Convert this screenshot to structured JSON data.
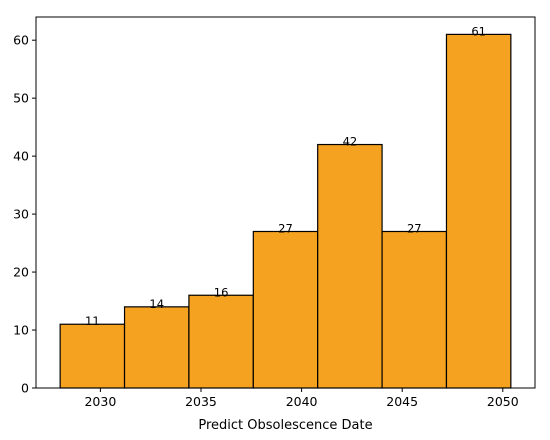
{
  "chart_data": {
    "type": "bar",
    "bins": [
      {
        "start": 2028.0,
        "end": 2031.2,
        "count": 11
      },
      {
        "start": 2031.2,
        "end": 2034.4,
        "count": 14
      },
      {
        "start": 2034.4,
        "end": 2037.6,
        "count": 16
      },
      {
        "start": 2037.6,
        "end": 2040.8,
        "count": 27
      },
      {
        "start": 2040.8,
        "end": 2044.0,
        "count": 42
      },
      {
        "start": 2044.0,
        "end": 2047.2,
        "count": 27
      },
      {
        "start": 2047.2,
        "end": 2050.4,
        "count": 61
      }
    ],
    "values": [
      11,
      14,
      16,
      27,
      42,
      27,
      61
    ],
    "title": "",
    "xlabel": "Predict Obsolescence Date",
    "ylabel": "",
    "xlim": [
      2026.8,
      2051.6
    ],
    "ylim": [
      0,
      64
    ],
    "xticks": [
      "2030",
      "2035",
      "2040",
      "2045",
      "2050"
    ],
    "yticks": [
      "0",
      "10",
      "20",
      "30",
      "40",
      "50",
      "60"
    ],
    "bar_color": "#f5a220",
    "edge_color": "#000000",
    "grid": false,
    "legend": "none"
  }
}
